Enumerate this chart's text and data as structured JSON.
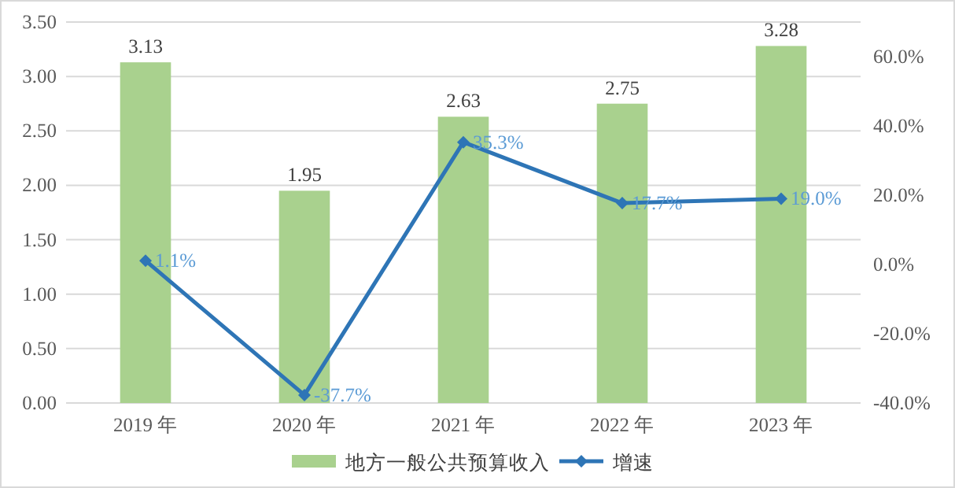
{
  "chart_data": {
    "type": "bar",
    "categories": [
      "2019 年",
      "2020 年",
      "2021 年",
      "2022 年",
      "2023 年"
    ],
    "series": [
      {
        "name": "地方一般公共预算收入",
        "color": "#a9d18e",
        "values": [
          3.13,
          1.95,
          2.63,
          2.75,
          3.28
        ]
      },
      {
        "name": "增速",
        "type": "line",
        "axis": "y2",
        "color": "#2e75b6",
        "marker": "diamond",
        "values": [
          1.1,
          -37.7,
          35.3,
          17.7,
          19.0
        ],
        "value_labels": [
          "1.1%",
          "-37.7%",
          "35.3%",
          "17.7%",
          "19.0%"
        ]
      }
    ],
    "data_labels": true,
    "ylim": [
      0,
      3.5
    ],
    "yticks": [
      {
        "value": 0,
        "label": "0.00"
      },
      {
        "value": 0.5,
        "label": "0.50"
      },
      {
        "value": 1,
        "label": "1.00"
      },
      {
        "value": 1.5,
        "label": "1.50"
      },
      {
        "value": 2,
        "label": "2.00"
      },
      {
        "value": 2.5,
        "label": "2.50"
      },
      {
        "value": 3,
        "label": "3.00"
      },
      {
        "value": 3.5,
        "label": "3.50"
      }
    ],
    "y2lim": [
      -40,
      70
    ],
    "y2ticks": [
      {
        "value": -40,
        "label": "-40.0%"
      },
      {
        "value": -20,
        "label": "-20.0%"
      },
      {
        "value": 0,
        "label": "0.0%"
      },
      {
        "value": 20,
        "label": "20.0%"
      },
      {
        "value": 40,
        "label": "40.0%"
      },
      {
        "value": 60,
        "label": "60.0%"
      }
    ],
    "grid": "y",
    "legend": "bottom"
  }
}
